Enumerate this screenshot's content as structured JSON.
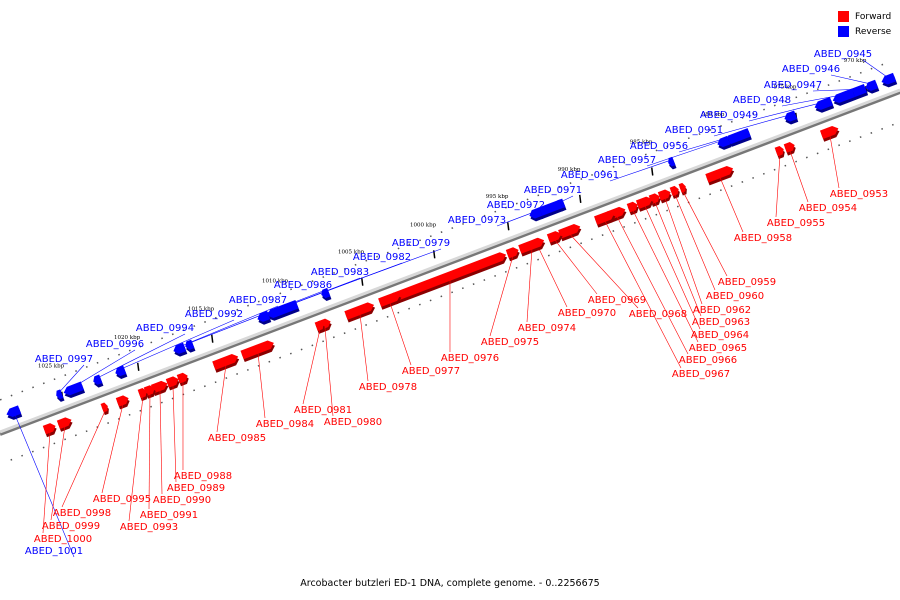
{
  "legend": {
    "forward_label": "Forward",
    "reverse_label": "Reverse",
    "forward_color": "#ff0000",
    "reverse_color": "#0000ff"
  },
  "caption": "Arcobacter butzleri ED-1 DNA, complete genome. - 0..2256675",
  "ticks": [
    "970 kbp",
    "975 kbp",
    "980 kbp",
    "985 kbp",
    "990 kbp",
    "995 kbp",
    "1000 kbp",
    "1005 kbp",
    "1010 kbp",
    "1015 kbp",
    "1020 kbp",
    "1025 kbp"
  ],
  "reverse_genes": [
    "ABED_0945",
    "ABED_0946",
    "ABED_0947",
    "ABED_0948",
    "ABED_0949",
    "ABED_0951",
    "ABED_0956",
    "ABED_0957",
    "ABED_0961",
    "ABED_0971",
    "ABED_0972",
    "ABED_0973",
    "ABED_0979",
    "ABED_0982",
    "ABED_0983",
    "ABED_0986",
    "ABED_0987",
    "ABED_0992",
    "ABED_0994",
    "ABED_0996",
    "ABED_0997",
    "ABED_1001"
  ],
  "forward_genes": [
    "ABED_0953",
    "ABED_0954",
    "ABED_0955",
    "ABED_0958",
    "ABED_0959",
    "ABED_0960",
    "ABED_0962",
    "ABED_0963",
    "ABED_0964",
    "ABED_0965",
    "ABED_0966",
    "ABED_0967",
    "ABED_0968",
    "ABED_0969",
    "ABED_0970",
    "ABED_0974",
    "ABED_0975",
    "ABED_0976",
    "ABED_0977",
    "ABED_0978",
    "ABED_0980",
    "ABED_0981",
    "ABED_0984",
    "ABED_0985",
    "ABED_0988",
    "ABED_0989",
    "ABED_0990",
    "ABED_0991",
    "ABED_0993",
    "ABED_0995",
    "ABED_0998",
    "ABED_0999",
    "ABED_1000"
  ]
}
